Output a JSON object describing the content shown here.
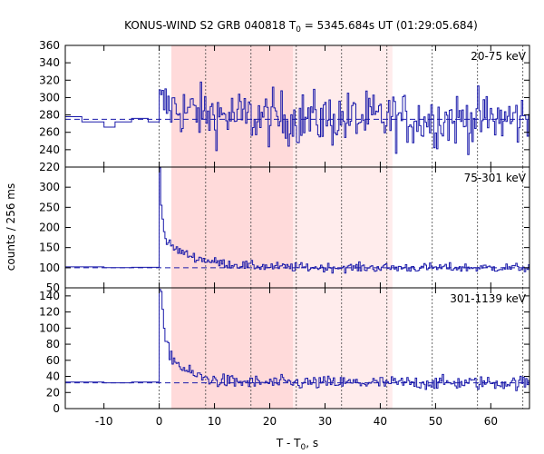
{
  "chart_data": {
    "type": "line",
    "title_main": "KONUS-WIND S2 GRB 040818 T",
    "title_sub": "0",
    "title_rest": " = 5345.684s UT (01:29:05.684)",
    "xlabel_main": "T - T",
    "xlabel_sub": "0",
    "xlabel_rest": ", s",
    "ylabel": "counts / 256 ms",
    "xlim": [
      -17,
      67
    ],
    "xticks": [
      -10,
      0,
      10,
      20,
      30,
      40,
      50,
      60
    ],
    "colors": {
      "series": "#1a1aaa",
      "shade_dark": "#ffdada",
      "shade_light": "#ffecec",
      "marker": "#444444"
    },
    "shaded_regions": [
      {
        "x0": 2.2,
        "x1": 24.2,
        "shade": "dark"
      },
      {
        "x0": 24.2,
        "x1": 42.2,
        "shade": "light"
      }
    ],
    "dotted_verticals": [
      0,
      8.4,
      16.6,
      24.8,
      33.0,
      41.2,
      49.4,
      57.6,
      65.8
    ],
    "panels": [
      {
        "label": "20-75 keV",
        "ylim": [
          220,
          360
        ],
        "yticks": [
          220,
          240,
          260,
          280,
          300,
          320,
          340,
          360
        ],
        "background": 275,
        "noise": 14,
        "pre_steps": [
          {
            "x0": -17,
            "x1": -14,
            "y": 278
          },
          {
            "x0": -14,
            "x1": -10,
            "y": 272
          },
          {
            "x0": -10,
            "x1": -8,
            "y": 266
          },
          {
            "x0": -8,
            "x1": -5,
            "y": 272
          },
          {
            "x0": -5,
            "x1": -2,
            "y": 276
          },
          {
            "x0": -2,
            "x1": 0,
            "y": 272
          }
        ],
        "burst": {
          "peak": 18,
          "decay": 8
        }
      },
      {
        "label": "75-301 keV",
        "ylim": [
          50,
          350
        ],
        "yticks": [
          50,
          100,
          150,
          200,
          250,
          300
        ],
        "background": 100,
        "noise": 8,
        "pre_steps": [
          {
            "x0": -17,
            "x1": -10,
            "y": 102
          },
          {
            "x0": -10,
            "x1": -5,
            "y": 100
          },
          {
            "x0": -5,
            "x1": 0,
            "y": 101
          }
        ],
        "burst": {
          "peak": 200,
          "decay": 0.35,
          "tail": 75,
          "tail_decay": 6
        }
      },
      {
        "label": "301-1139 keV",
        "ylim": [
          0,
          150
        ],
        "yticks": [
          0,
          20,
          40,
          60,
          80,
          100,
          120,
          140
        ],
        "background": 32,
        "noise": 6,
        "pre_steps": [
          {
            "x0": -17,
            "x1": -10,
            "y": 33
          },
          {
            "x0": -10,
            "x1": -5,
            "y": 32
          },
          {
            "x0": -5,
            "x1": 0,
            "y": 33
          }
        ],
        "burst": {
          "peak": 110,
          "decay": 0.4,
          "tail": 60,
          "tail_decay": 3.5
        }
      }
    ]
  }
}
